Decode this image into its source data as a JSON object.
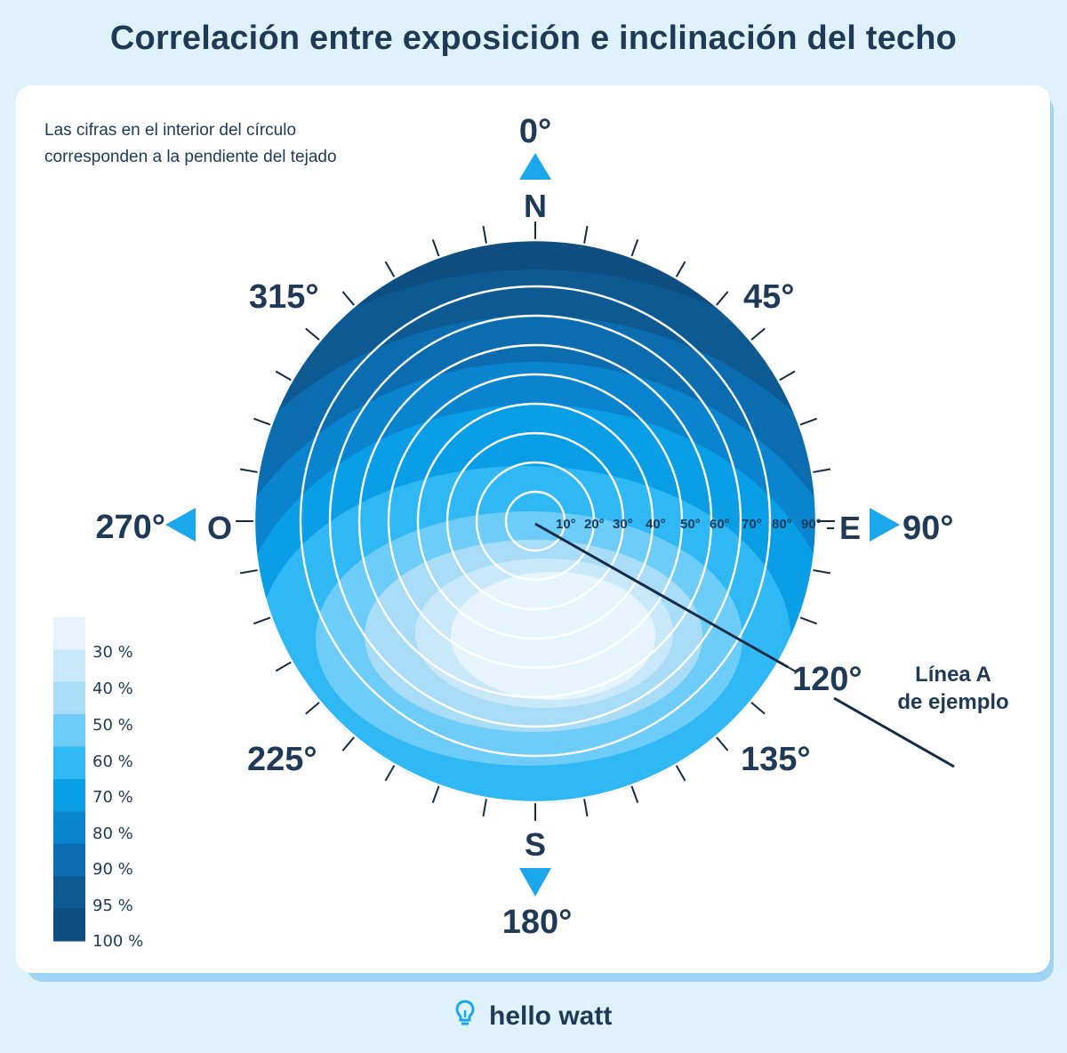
{
  "title": "Correlación entre exposición e inclinación del techo",
  "note": {
    "line1": "Las cifras en el interior del círculo",
    "line2": "corresponden a la pendiente del tejado"
  },
  "compass": {
    "north_letter": "N",
    "south_letter": "S",
    "east_letter": "E",
    "west_letter": "O",
    "north_deg": "0°",
    "south_deg": "180°",
    "east_deg": "90°",
    "west_deg": "270°",
    "ne_deg": "45°",
    "nw_deg": "315°",
    "se_deg": "135°",
    "sw_deg": "225°",
    "example_deg": "120°"
  },
  "slope_labels": [
    "10°",
    "20°",
    "30°",
    "40°",
    "50°",
    "60°",
    "70°",
    "80°",
    "90°"
  ],
  "example_line": {
    "line1": "Línea A",
    "line2": "de ejemplo"
  },
  "legend": {
    "labels": [
      "30 %",
      "40 %",
      "50 %",
      "60 %",
      "70 %",
      "80 %",
      "90 %",
      "95 %",
      "100 %"
    ],
    "colors": [
      "#e6f5fd",
      "#c9e9fa",
      "#a8dcf7",
      "#6dccf8",
      "#2fb8f3",
      "#0a9ee6",
      "#0a84cf",
      "#0b6cb0",
      "#0d5a92",
      "#0e4e80"
    ]
  },
  "colors": {
    "accent": "#1aa7ec",
    "text": "#1f3a57",
    "zones": [
      "#0e4e80",
      "#0d5a92",
      "#0b6cb0",
      "#0a84cf",
      "#0a9ee6",
      "#2fb8f3",
      "#6dccf8",
      "#a8dcf7",
      "#c9e9fa",
      "#e6f5fd"
    ]
  },
  "footer": {
    "brand": "hello watt",
    "icon": "lightbulb-icon"
  }
}
